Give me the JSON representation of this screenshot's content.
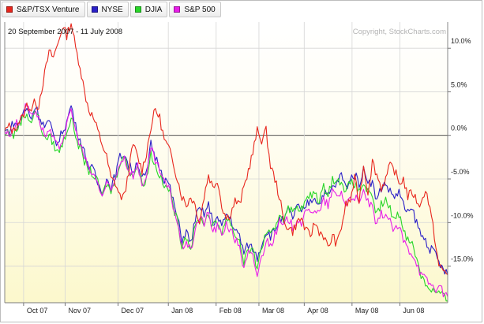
{
  "legend": [
    {
      "label": "S&P/TSX Venture",
      "color": "#e8261c"
    },
    {
      "label": "NYSE",
      "color": "#2a1fc7"
    },
    {
      "label": "DJIA",
      "color": "#29d629"
    },
    {
      "label": "S&P 500",
      "color": "#e81ee8"
    }
  ],
  "chart_data": {
    "type": "line",
    "date_range": "20 September 2007 - 11 July 2008",
    "copyright": "Copyright, StockCharts.com",
    "ylim": [
      -19.2,
      13.0
    ],
    "yticks": [
      10.0,
      5.0,
      0.0,
      -5.0,
      -10.0,
      -15.0
    ],
    "ytick_labels": [
      "10.0%",
      "5.0%",
      "0.0%",
      "-5.0%",
      "-10.0%",
      "-15.0%"
    ],
    "months": [
      "Oct 07",
      "Nov 07",
      "Dec 07",
      "Jan 08",
      "Feb 08",
      "Mar 08",
      "Apr 08",
      "May 08",
      "Jun 08"
    ],
    "month_positions": [
      0.0426,
      0.1364,
      0.2557,
      0.3693,
      0.4773,
      0.5739,
      0.6761,
      0.7841,
      0.892
    ],
    "series": [
      {
        "name": "S&P/TSX Venture",
        "color": "#e8261c",
        "t": [
          0,
          0.01,
          0.02,
          0.03,
          0.04,
          0.05,
          0.06,
          0.07,
          0.075,
          0.08,
          0.09,
          0.1,
          0.11,
          0.12,
          0.13,
          0.14,
          0.15,
          0.16,
          0.17,
          0.18,
          0.19,
          0.2,
          0.21,
          0.22,
          0.23,
          0.24,
          0.25,
          0.26,
          0.27,
          0.28,
          0.29,
          0.3,
          0.31,
          0.32,
          0.33,
          0.34,
          0.35,
          0.36,
          0.37,
          0.38,
          0.39,
          0.4,
          0.41,
          0.42,
          0.43,
          0.44,
          0.45,
          0.46,
          0.47,
          0.48,
          0.49,
          0.5,
          0.51,
          0.52,
          0.53,
          0.54,
          0.55,
          0.56,
          0.57,
          0.58,
          0.59,
          0.6,
          0.61,
          0.62,
          0.63,
          0.64,
          0.65,
          0.66,
          0.67,
          0.68,
          0.69,
          0.7,
          0.71,
          0.72,
          0.73,
          0.74,
          0.75,
          0.76,
          0.77,
          0.78,
          0.79,
          0.8,
          0.81,
          0.82,
          0.83,
          0.84,
          0.85,
          0.86,
          0.87,
          0.88,
          0.89,
          0.9,
          0.91,
          0.92,
          0.93,
          0.94,
          0.95,
          0.96,
          0.97,
          0.98,
          0.99,
          1
        ],
        "v": [
          0.5,
          1.0,
          0.5,
          1.5,
          2.0,
          3.5,
          3.0,
          4.0,
          3.0,
          4.5,
          7.0,
          9.5,
          9.0,
          10.5,
          12.5,
          11.5,
          13.0,
          10.0,
          8.0,
          5.0,
          3.0,
          2.0,
          0.5,
          -1.0,
          -2.5,
          -5.0,
          -5.5,
          -7.0,
          -7.0,
          -4.0,
          -1.0,
          -2.5,
          -4.0,
          -2.0,
          1.0,
          3.0,
          2.0,
          -0.5,
          -1.5,
          -3.0,
          -5.0,
          -7.0,
          -8.0,
          -7.0,
          -8.0,
          -10.0,
          -7.0,
          -4.5,
          -6.0,
          -5.0,
          -8.0,
          -9.5,
          -9.0,
          -7.5,
          -8.0,
          -6.0,
          -4.0,
          -2.0,
          0.5,
          -0.5,
          0.5,
          -3.5,
          -5.0,
          -7.0,
          -10.0,
          -10.5,
          -11.0,
          -10.0,
          -9.5,
          -11.0,
          -11.5,
          -10.0,
          -11.0,
          -11.5,
          -13.0,
          -11.5,
          -12.5,
          -10.5,
          -8.0,
          -7.5,
          -5.0,
          -7.5,
          -3.5,
          -6.5,
          -3.0,
          -4.5,
          -6.0,
          -5.0,
          -3.5,
          -4.0,
          -5.5,
          -5.0,
          -7.0,
          -6.5,
          -7.5,
          -8.0,
          -6.0,
          -8.5,
          -11.5,
          -15.0,
          -15.5,
          -16.0
        ]
      },
      {
        "name": "NYSE",
        "color": "#2a1fc7",
        "t": [
          0,
          0.01,
          0.02,
          0.03,
          0.04,
          0.05,
          0.06,
          0.07,
          0.075,
          0.08,
          0.09,
          0.1,
          0.11,
          0.12,
          0.13,
          0.14,
          0.15,
          0.16,
          0.17,
          0.18,
          0.19,
          0.2,
          0.21,
          0.22,
          0.23,
          0.24,
          0.25,
          0.26,
          0.27,
          0.28,
          0.29,
          0.3,
          0.31,
          0.32,
          0.33,
          0.34,
          0.35,
          0.36,
          0.37,
          0.38,
          0.39,
          0.4,
          0.41,
          0.42,
          0.43,
          0.44,
          0.45,
          0.46,
          0.47,
          0.48,
          0.49,
          0.5,
          0.51,
          0.52,
          0.53,
          0.54,
          0.55,
          0.56,
          0.57,
          0.58,
          0.59,
          0.6,
          0.61,
          0.62,
          0.63,
          0.64,
          0.65,
          0.66,
          0.67,
          0.68,
          0.69,
          0.7,
          0.71,
          0.72,
          0.73,
          0.74,
          0.75,
          0.76,
          0.77,
          0.78,
          0.79,
          0.8,
          0.81,
          0.82,
          0.83,
          0.84,
          0.85,
          0.86,
          0.87,
          0.88,
          0.89,
          0.9,
          0.91,
          0.92,
          0.93,
          0.94,
          0.95,
          0.96,
          0.97,
          0.98,
          0.99,
          1
        ],
        "v": [
          0.5,
          0.5,
          1.5,
          1.0,
          2.5,
          3.0,
          2.0,
          3.5,
          2.5,
          2.0,
          1.0,
          1.5,
          0.0,
          -1.0,
          0.5,
          1.5,
          3.5,
          1.0,
          -0.5,
          -2.0,
          -3.5,
          -4.0,
          -5.5,
          -6.5,
          -5.0,
          -6.0,
          -4.5,
          -2.5,
          -2.0,
          -3.5,
          -4.0,
          -3.0,
          -5.0,
          -4.5,
          -1.0,
          -2.5,
          -3.5,
          -5.0,
          -5.5,
          -7.5,
          -9.5,
          -12.0,
          -11.0,
          -12.5,
          -9.5,
          -8.5,
          -9.0,
          -8.0,
          -10.0,
          -9.5,
          -10.5,
          -9.0,
          -9.5,
          -11.0,
          -11.5,
          -13.5,
          -12.5,
          -13.0,
          -14.0,
          -12.5,
          -11.0,
          -11.5,
          -11.0,
          -9.5,
          -10.0,
          -8.5,
          -9.5,
          -8.0,
          -9.0,
          -8.0,
          -7.5,
          -7.0,
          -8.0,
          -6.5,
          -7.0,
          -6.0,
          -5.5,
          -4.5,
          -6.0,
          -5.0,
          -4.5,
          -5.5,
          -4.0,
          -5.0,
          -5.5,
          -7.5,
          -6.0,
          -5.5,
          -6.5,
          -7.0,
          -6.5,
          -8.0,
          -9.0,
          -8.5,
          -10.0,
          -11.5,
          -12.0,
          -13.0,
          -13.5,
          -14.5,
          -15.5,
          -16.0
        ]
      },
      {
        "name": "DJIA",
        "color": "#29d629",
        "t": [
          0,
          0.01,
          0.02,
          0.03,
          0.04,
          0.05,
          0.06,
          0.07,
          0.075,
          0.08,
          0.09,
          0.1,
          0.11,
          0.12,
          0.13,
          0.14,
          0.15,
          0.16,
          0.17,
          0.18,
          0.19,
          0.2,
          0.21,
          0.22,
          0.23,
          0.24,
          0.25,
          0.26,
          0.27,
          0.28,
          0.29,
          0.3,
          0.31,
          0.32,
          0.33,
          0.34,
          0.35,
          0.36,
          0.37,
          0.38,
          0.39,
          0.4,
          0.41,
          0.42,
          0.43,
          0.44,
          0.45,
          0.46,
          0.47,
          0.48,
          0.49,
          0.5,
          0.51,
          0.52,
          0.53,
          0.54,
          0.55,
          0.56,
          0.57,
          0.58,
          0.59,
          0.6,
          0.61,
          0.62,
          0.63,
          0.64,
          0.65,
          0.66,
          0.67,
          0.68,
          0.69,
          0.7,
          0.71,
          0.72,
          0.73,
          0.74,
          0.75,
          0.76,
          0.77,
          0.78,
          0.79,
          0.8,
          0.81,
          0.82,
          0.83,
          0.84,
          0.85,
          0.86,
          0.87,
          0.88,
          0.89,
          0.9,
          0.91,
          0.92,
          0.93,
          0.94,
          0.95,
          0.96,
          0.97,
          0.98,
          0.99,
          1
        ],
        "v": [
          0.0,
          0.5,
          0.0,
          1.0,
          2.0,
          2.5,
          1.5,
          3.0,
          2.0,
          1.5,
          -0.5,
          0.0,
          -1.0,
          -2.0,
          -1.0,
          0.5,
          2.0,
          0.0,
          -1.5,
          -3.0,
          -4.0,
          -4.5,
          -5.5,
          -7.0,
          -5.5,
          -6.5,
          -5.0,
          -3.0,
          -2.5,
          -4.0,
          -4.5,
          -3.5,
          -5.5,
          -5.0,
          -2.0,
          -3.5,
          -4.5,
          -6.0,
          -6.0,
          -8.0,
          -10.0,
          -12.5,
          -11.5,
          -13.0,
          -10.5,
          -9.5,
          -10.0,
          -9.0,
          -10.5,
          -10.0,
          -11.0,
          -9.5,
          -10.0,
          -11.5,
          -12.0,
          -14.5,
          -13.0,
          -13.5,
          -15.0,
          -13.0,
          -11.0,
          -11.5,
          -11.0,
          -9.0,
          -9.5,
          -8.0,
          -9.0,
          -8.0,
          -8.5,
          -7.5,
          -7.0,
          -6.5,
          -7.5,
          -6.0,
          -6.5,
          -5.0,
          -5.5,
          -5.0,
          -6.5,
          -5.5,
          -5.5,
          -6.5,
          -5.5,
          -6.5,
          -7.5,
          -9.0,
          -8.0,
          -7.5,
          -8.5,
          -9.5,
          -9.0,
          -10.5,
          -12.0,
          -12.5,
          -14.0,
          -16.0,
          -17.0,
          -17.5,
          -18.0,
          -18.0,
          -18.5,
          -19.0
        ]
      },
      {
        "name": "S&P 500",
        "color": "#e81ee8",
        "t": [
          0,
          0.01,
          0.02,
          0.03,
          0.04,
          0.05,
          0.06,
          0.07,
          0.075,
          0.08,
          0.09,
          0.1,
          0.11,
          0.12,
          0.13,
          0.14,
          0.15,
          0.16,
          0.17,
          0.18,
          0.19,
          0.2,
          0.21,
          0.22,
          0.23,
          0.24,
          0.25,
          0.26,
          0.27,
          0.28,
          0.29,
          0.3,
          0.31,
          0.32,
          0.33,
          0.34,
          0.35,
          0.36,
          0.37,
          0.38,
          0.39,
          0.4,
          0.41,
          0.42,
          0.43,
          0.44,
          0.45,
          0.46,
          0.47,
          0.48,
          0.49,
          0.5,
          0.51,
          0.52,
          0.53,
          0.54,
          0.55,
          0.56,
          0.57,
          0.58,
          0.59,
          0.6,
          0.61,
          0.62,
          0.63,
          0.64,
          0.65,
          0.66,
          0.67,
          0.68,
          0.69,
          0.7,
          0.71,
          0.72,
          0.73,
          0.74,
          0.75,
          0.76,
          0.77,
          0.78,
          0.79,
          0.8,
          0.81,
          0.82,
          0.83,
          0.84,
          0.85,
          0.86,
          0.87,
          0.88,
          0.89,
          0.9,
          0.91,
          0.92,
          0.93,
          0.94,
          0.95,
          0.96,
          0.97,
          0.98,
          0.99,
          1
        ],
        "v": [
          0.5,
          0.0,
          1.0,
          1.5,
          2.5,
          3.5,
          2.5,
          3.0,
          2.0,
          1.5,
          0.0,
          0.5,
          -0.5,
          -1.5,
          -0.5,
          1.0,
          3.0,
          0.5,
          -1.0,
          -2.5,
          -4.0,
          -4.5,
          -5.5,
          -7.0,
          -5.5,
          -6.5,
          -5.0,
          -3.0,
          -2.5,
          -4.0,
          -4.5,
          -3.5,
          -5.5,
          -5.0,
          -1.5,
          -3.0,
          -4.0,
          -5.5,
          -6.0,
          -8.0,
          -10.0,
          -13.0,
          -12.0,
          -13.5,
          -10.5,
          -9.5,
          -10.0,
          -9.0,
          -11.0,
          -10.5,
          -11.5,
          -10.0,
          -11.0,
          -12.0,
          -12.5,
          -15.5,
          -13.5,
          -14.0,
          -16.0,
          -14.0,
          -12.0,
          -12.5,
          -11.5,
          -10.0,
          -10.5,
          -9.5,
          -10.5,
          -9.5,
          -10.0,
          -9.0,
          -8.5,
          -8.5,
          -9.0,
          -7.5,
          -8.0,
          -6.5,
          -7.0,
          -6.5,
          -8.0,
          -7.0,
          -7.0,
          -8.0,
          -6.5,
          -7.5,
          -8.5,
          -10.5,
          -9.0,
          -9.0,
          -10.0,
          -11.0,
          -10.5,
          -12.0,
          -13.0,
          -13.5,
          -14.5,
          -16.0,
          -16.5,
          -17.0,
          -17.5,
          -17.5,
          -18.0,
          -18.5
        ]
      }
    ]
  }
}
